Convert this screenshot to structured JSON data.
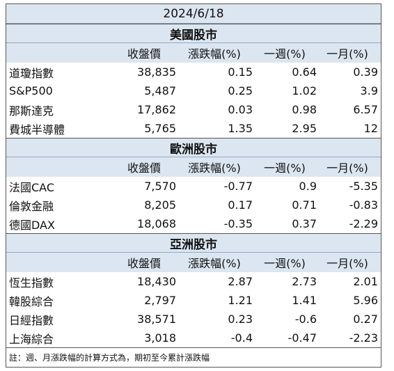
{
  "title": "2024/6/18",
  "sections": [
    {
      "name": "美國股市",
      "columns": [
        "收盤價",
        "漲跌幅(%)",
        "一週(%)",
        "一月(%)"
      ],
      "rows": [
        [
          "道瓊指數",
          "38,835",
          "0.15",
          "0.64",
          "0.39"
        ],
        [
          "S&P500",
          "5,487",
          "0.25",
          "1.02",
          "3.9"
        ],
        [
          "那斯達克",
          "17,862",
          "0.03",
          "0.98",
          "6.57"
        ],
        [
          "費城半導體",
          "5,765",
          "1.35",
          "2.95",
          "12"
        ]
      ]
    },
    {
      "name": "歐洲股市",
      "columns": [
        "收盤價",
        "漲跌幅(%)",
        "一週(%)",
        "一月(%)"
      ],
      "rows": [
        [
          "法國CAC",
          "7,570",
          "-0.77",
          "0.9",
          "-5.35"
        ],
        [
          "倫敦金融",
          "8,205",
          "0.17",
          "0.71",
          "-0.83"
        ],
        [
          "德國DAX",
          "18,068",
          "-0.35",
          "0.37",
          "-2.29"
        ]
      ]
    },
    {
      "name": "亞洲股市",
      "columns": [
        "收盤價",
        "漲跌幅(%)",
        "一週(%)",
        "一月(%)"
      ],
      "rows": [
        [
          "恆生指數",
          "18,430",
          "2.87",
          "2.73",
          "2.01"
        ],
        [
          "韓股綜合",
          "2,797",
          "1.21",
          "1.41",
          "5.96"
        ],
        [
          "日經指數",
          "38,571",
          "0.23",
          "-0.6",
          "0.27"
        ],
        [
          "上海綜合",
          "3,018",
          "-0.4",
          "-0.47",
          "-2.23"
        ]
      ]
    }
  ],
  "note": "註：週、月漲跌幅的計算方式為，期初至今累計漲跌幅"
}
